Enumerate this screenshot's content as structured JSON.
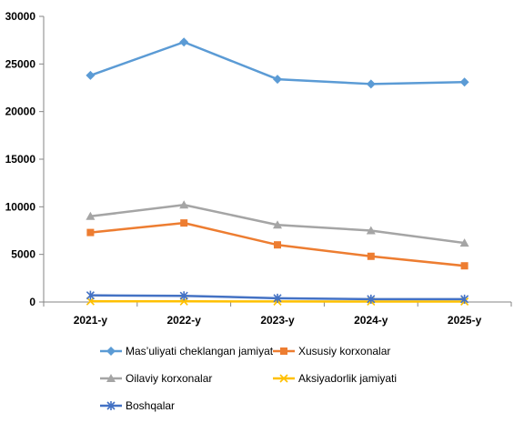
{
  "chart_data": {
    "type": "line",
    "title": "",
    "xlabel": "",
    "ylabel": "",
    "categories": [
      "2021-y",
      "2022-y",
      "2023-y",
      "2024-y",
      "2025-y"
    ],
    "ylim": [
      0,
      30000
    ],
    "yticks": [
      0,
      5000,
      10000,
      15000,
      20000,
      25000,
      30000
    ],
    "ytick_labels": [
      "0",
      "5000",
      "10000",
      "15000",
      "20000",
      "25000",
      "30000"
    ],
    "grid": false,
    "legend_position": "bottom",
    "series": [
      {
        "name": "Mas’uliyati cheklangan jamiyat",
        "color": "#5b9bd5",
        "marker": "diamond",
        "values": [
          23800,
          27300,
          23400,
          22900,
          23100
        ]
      },
      {
        "name": "Xususiy korxonalar",
        "color": "#ed7d31",
        "marker": "square",
        "values": [
          7300,
          8300,
          6000,
          4800,
          3800
        ]
      },
      {
        "name": "Oilaviy korxonalar",
        "color": "#a5a5a5",
        "marker": "triangle",
        "values": [
          9000,
          10200,
          8100,
          7500,
          6200
        ]
      },
      {
        "name": "Aksiyadorlik jamiyati",
        "color": "#ffc000",
        "marker": "x",
        "values": [
          80,
          70,
          60,
          50,
          50
        ]
      },
      {
        "name": "Boshqalar",
        "color": "#4472c4",
        "marker": "star",
        "values": [
          700,
          650,
          400,
          300,
          300
        ]
      }
    ]
  }
}
